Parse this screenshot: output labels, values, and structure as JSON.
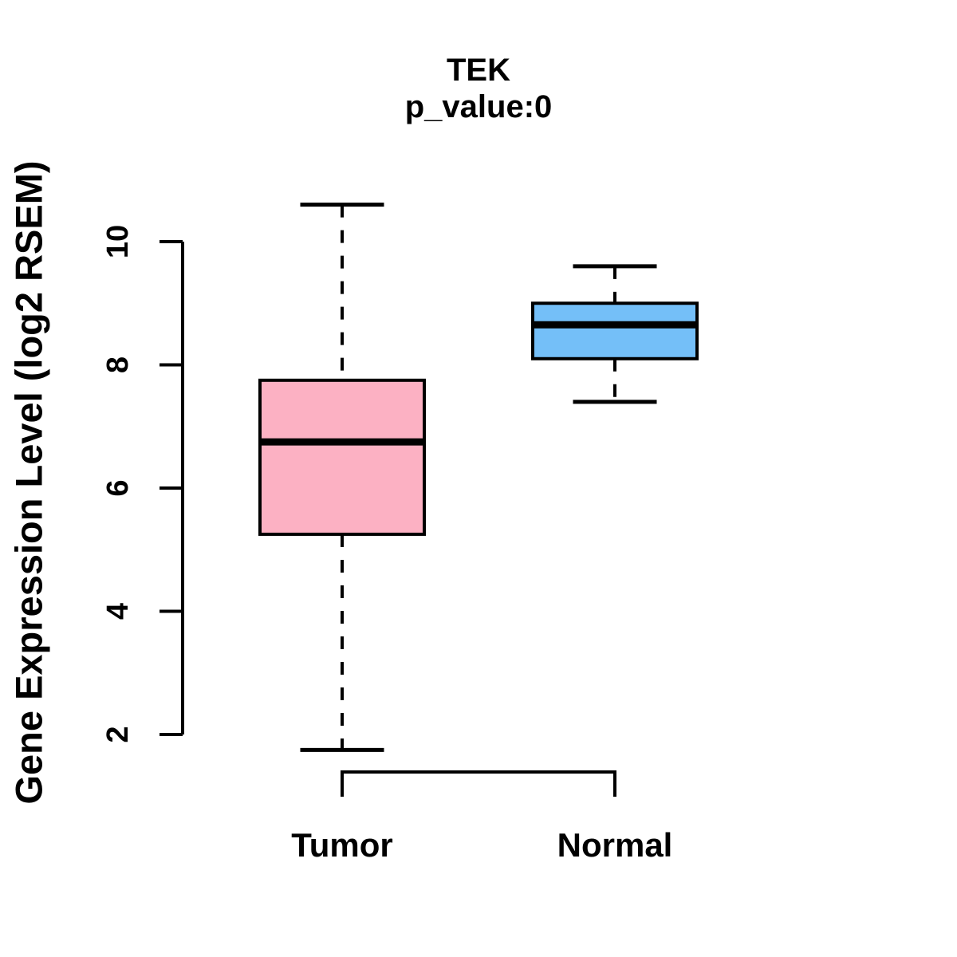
{
  "title": "TEK",
  "subtitle": "p_value:0",
  "y_axis": {
    "label": "Gene Expression Level (log2 RSEM)",
    "ticks": [
      2,
      4,
      6,
      8,
      10
    ]
  },
  "colors": {
    "tumor_fill": "#FCB1C3",
    "normal_fill": "#74BFF8",
    "line": "#000000",
    "background": "#FFFFFF"
  },
  "chart_data": {
    "type": "boxplot",
    "title": "TEK",
    "subtitle": "p_value:0",
    "ylabel": "Gene Expression Level (log2 RSEM)",
    "xlabel": "",
    "categories": [
      "Tumor",
      "Normal"
    ],
    "series": [
      {
        "name": "Tumor",
        "whisker_low": 1.75,
        "q1": 5.25,
        "median": 6.75,
        "q3": 7.75,
        "whisker_high": 10.6,
        "fill": "#FCB1C3"
      },
      {
        "name": "Normal",
        "whisker_low": 7.4,
        "q1": 8.1,
        "median": 8.65,
        "q3": 9.0,
        "whisker_high": 9.6,
        "fill": "#74BFF8"
      }
    ],
    "yticks": [
      2,
      4,
      6,
      8,
      10
    ],
    "ylim": [
      1.5,
      10.8
    ],
    "grid": false,
    "legend_position": "none",
    "whisker_style": "dashed"
  }
}
